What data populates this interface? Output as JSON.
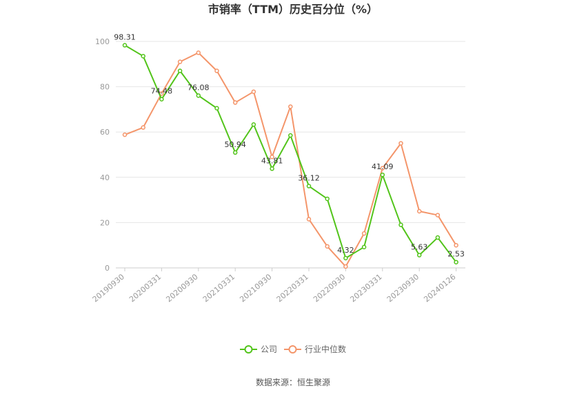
{
  "chart_data": {
    "type": "line",
    "title": "市销率（TTM）历史百分位（%）",
    "ylim": [
      0,
      100
    ],
    "yticks": [
      0,
      20,
      40,
      60,
      80,
      100
    ],
    "x": [
      "20190930",
      "20191231",
      "20200331",
      "20200630",
      "20200930",
      "20201231",
      "20210331",
      "20210630",
      "20210930",
      "20211231",
      "20220331",
      "20220630",
      "20220930",
      "20221231",
      "20230331",
      "20230630",
      "20230930",
      "20231231",
      "20240126"
    ],
    "xtick_labels": [
      "20190930",
      "20200331",
      "20200930",
      "20210331",
      "20210930",
      "20220331",
      "20220930",
      "20230331",
      "20230930",
      "20240126"
    ],
    "series": [
      {
        "name": "公司",
        "color": "#52c41a",
        "values": [
          98.31,
          93.5,
          74.48,
          87.0,
          76.08,
          70.5,
          50.94,
          63.3,
          43.81,
          58.5,
          36.12,
          30.5,
          4.32,
          9.2,
          41.09,
          19.0,
          5.63,
          13.4,
          2.53
        ]
      },
      {
        "name": "行业中位数",
        "color": "#f4956a",
        "values": [
          58.8,
          62.0,
          77.0,
          91.0,
          95.0,
          87.0,
          73.0,
          77.8,
          49.0,
          71.2,
          21.5,
          9.5,
          0.6,
          15.2,
          44.0,
          55.0,
          25.0,
          23.3,
          10.0
        ]
      }
    ],
    "data_labels": [
      {
        "index": 0,
        "text": "98.31"
      },
      {
        "index": 2,
        "text": "74.48"
      },
      {
        "index": 4,
        "text": "76.08"
      },
      {
        "index": 6,
        "text": "50.94"
      },
      {
        "index": 8,
        "text": "43.81"
      },
      {
        "index": 10,
        "text": "36.12"
      },
      {
        "index": 12,
        "text": "4.32"
      },
      {
        "index": 14,
        "text": "41.09"
      },
      {
        "index": 16,
        "text": "5.63"
      },
      {
        "index": 18,
        "text": "2.53"
      }
    ],
    "legend": {
      "position": "bottom-center",
      "items": [
        "公司",
        "行业中位数"
      ]
    },
    "grid": true
  },
  "source": "数据来源：恒生聚源"
}
